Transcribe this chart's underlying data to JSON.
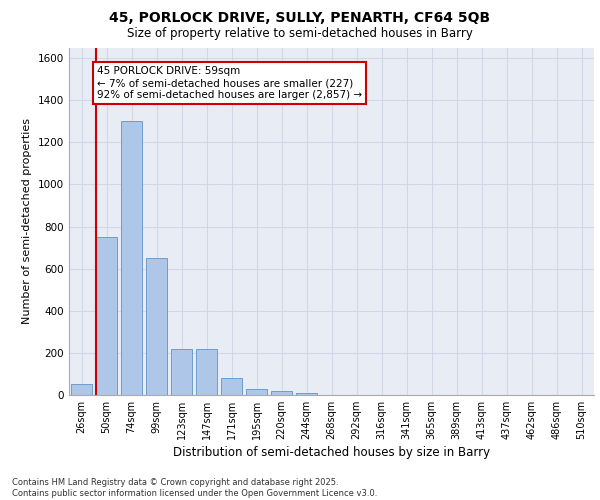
{
  "title_line1": "45, PORLOCK DRIVE, SULLY, PENARTH, CF64 5QB",
  "title_line2": "Size of property relative to semi-detached houses in Barry",
  "xlabel": "Distribution of semi-detached houses by size in Barry",
  "ylabel": "Number of semi-detached properties",
  "categories": [
    "26sqm",
    "50sqm",
    "74sqm",
    "99sqm",
    "123sqm",
    "147sqm",
    "171sqm",
    "195sqm",
    "220sqm",
    "244sqm",
    "268sqm",
    "292sqm",
    "316sqm",
    "341sqm",
    "365sqm",
    "389sqm",
    "413sqm",
    "437sqm",
    "462sqm",
    "486sqm",
    "510sqm"
  ],
  "values": [
    50,
    750,
    1300,
    650,
    220,
    220,
    80,
    30,
    18,
    8,
    2,
    0,
    0,
    0,
    0,
    0,
    0,
    0,
    0,
    0,
    0
  ],
  "bar_color": "#aec6e8",
  "bar_edge_color": "#5f93c8",
  "annotation_title": "45 PORLOCK DRIVE: 59sqm",
  "annotation_line1": "← 7% of semi-detached houses are smaller (227)",
  "annotation_line2": "92% of semi-detached houses are larger (2,857) →",
  "annotation_box_color": "#ffffff",
  "annotation_box_edge": "#cc0000",
  "highlight_line_color": "#cc0000",
  "ylim": [
    0,
    1650
  ],
  "yticks": [
    0,
    200,
    400,
    600,
    800,
    1000,
    1200,
    1400,
    1600
  ],
  "grid_color": "#d0d8e8",
  "background_color": "#e8edf5",
  "footer_line1": "Contains HM Land Registry data © Crown copyright and database right 2025.",
  "footer_line2": "Contains public sector information licensed under the Open Government Licence v3.0."
}
